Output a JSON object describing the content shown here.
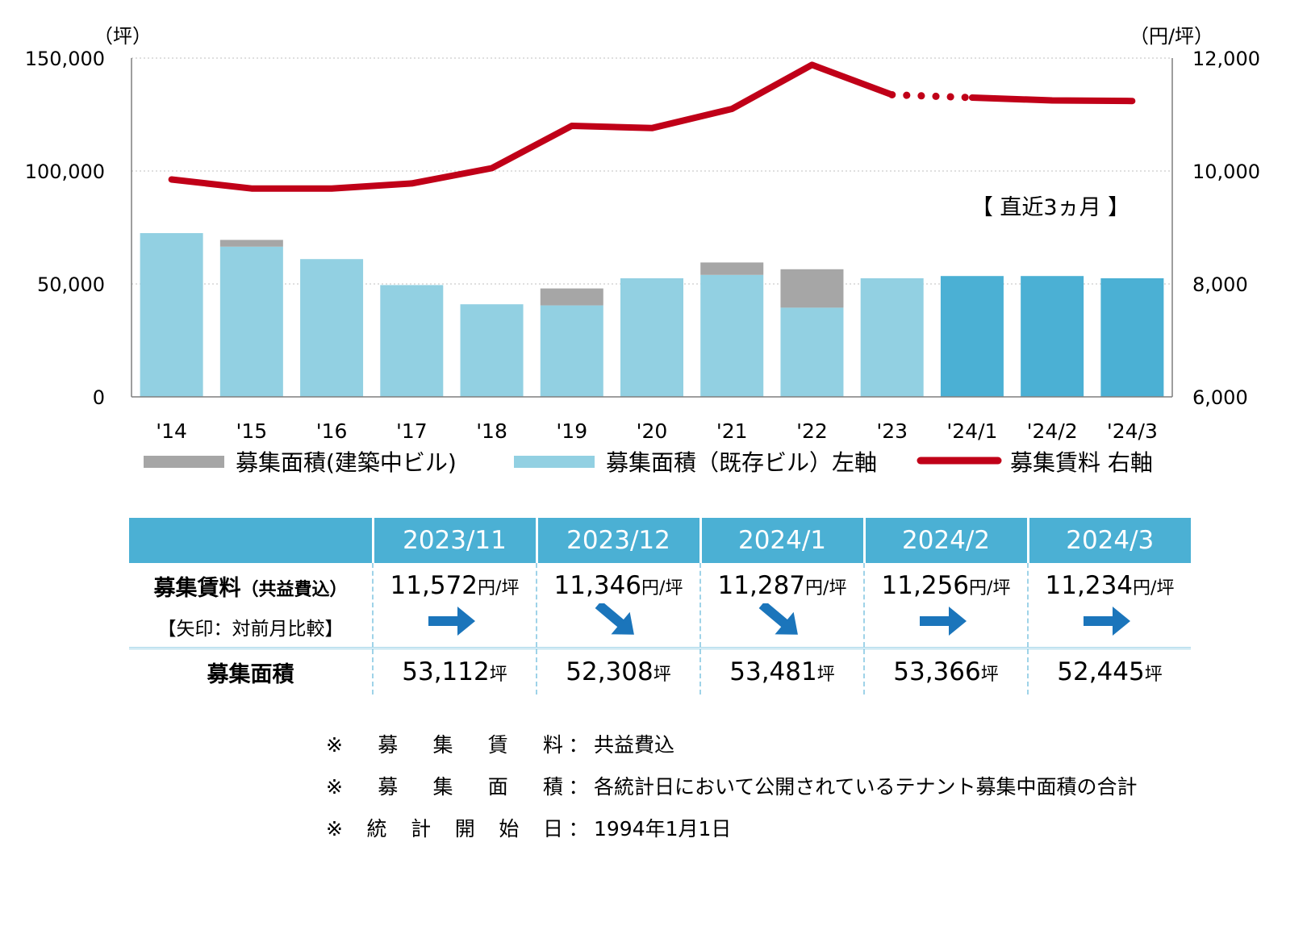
{
  "chart_data": {
    "type": "bar",
    "categories": [
      "'14",
      "'15",
      "'16",
      "'17",
      "'18",
      "'19",
      "'20",
      "'21",
      "'22",
      "'23",
      "'24/1",
      "'24/2",
      "'24/3"
    ],
    "series": [
      {
        "name": "募集面積(既存ビル)左軸",
        "type": "bar",
        "axis": "left",
        "stack": "area",
        "values": [
          72500,
          66500,
          61000,
          49500,
          41000,
          40500,
          52500,
          54000,
          39500,
          52500,
          53500,
          53500,
          52500
        ]
      },
      {
        "name": "募集面積(建築中ビル)",
        "type": "bar",
        "axis": "left",
        "stack": "area",
        "values": [
          0,
          3000,
          0,
          0,
          0,
          7500,
          0,
          5500,
          17000,
          0,
          0,
          0,
          0
        ]
      },
      {
        "name": "募集賃料 右軸",
        "type": "line",
        "axis": "right",
        "values": [
          9850,
          9690,
          9690,
          9780,
          10050,
          10800,
          10760,
          11100,
          11880,
          11350,
          11300,
          11250,
          11240
        ]
      }
    ],
    "highlight_bar_indices": [
      10,
      11,
      12
    ],
    "dotted_line_between": [
      9,
      10
    ],
    "y_left": {
      "unit": "（坪）",
      "ylim": [
        0,
        150000
      ],
      "ticks": [
        "0",
        "50,000",
        "100,000",
        "150,000"
      ]
    },
    "y_right": {
      "unit": "（円/坪）",
      "ylim": [
        6000,
        12000
      ],
      "ticks": [
        "6,000",
        "8,000",
        "10,000",
        "12,000"
      ]
    },
    "annotation": "【 直近3ヵ月 】",
    "legend": [
      "募集面積(建築中ビル)",
      "募集面積（既存ビル）左軸",
      "募集賃料 右軸"
    ],
    "grid": true,
    "colors": {
      "existing": "#92d0e2",
      "existing_recent": "#4bb0d4",
      "construction": "#a6a6a6",
      "rent": "#c00018",
      "grid": "#bfbfbf"
    }
  },
  "table": {
    "months": [
      "2023/11",
      "2023/12",
      "2024/1",
      "2024/2",
      "2024/3"
    ],
    "rent_label": "募集賃料",
    "rent_note": "（共益費込）",
    "rent_sub": "【矢印：対前月比較】",
    "rent_values": [
      "11,572",
      "11,346",
      "11,287",
      "11,256",
      "11,234"
    ],
    "rent_unit": "円/坪",
    "arrows": [
      "flat",
      "down",
      "down",
      "flat",
      "flat"
    ],
    "area_label": "募集面積",
    "area_values": [
      "53,112",
      "52,308",
      "53,481",
      "53,366",
      "52,445"
    ],
    "area_unit": "坪"
  },
  "notes": [
    {
      "label": [
        "※",
        "募",
        "集",
        "賃",
        "料"
      ],
      "colon": "：",
      "text": "共益費込"
    },
    {
      "label": [
        "※",
        "募",
        "集",
        "面",
        "積"
      ],
      "colon": "：",
      "text": "各統計日において公開されているテナント募集中面積の合計"
    },
    {
      "label": [
        "※",
        "統",
        "計",
        "開",
        "始",
        "日"
      ],
      "colon": "：",
      "text": "1994年1月1日"
    }
  ]
}
